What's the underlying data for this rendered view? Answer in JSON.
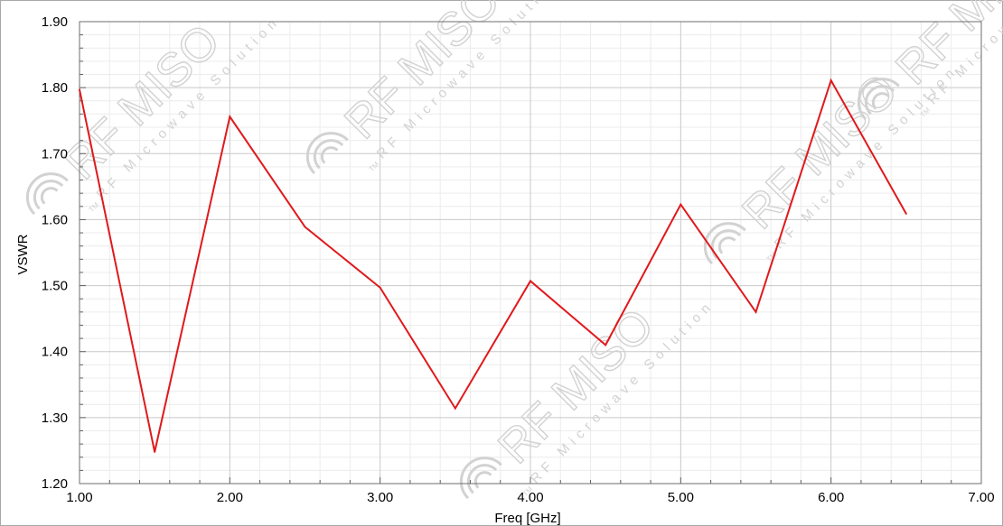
{
  "chart_data": {
    "type": "line",
    "title": "",
    "xlabel": "Freq [GHz]",
    "ylabel": "VSWR",
    "xlim": [
      1.0,
      7.0
    ],
    "ylim": [
      1.2,
      1.9
    ],
    "x_ticks": [
      "1.00",
      "2.00",
      "3.00",
      "4.00",
      "5.00",
      "6.00",
      "7.00"
    ],
    "y_ticks": [
      "1.20",
      "1.30",
      "1.40",
      "1.50",
      "1.60",
      "1.70",
      "1.80",
      "1.90"
    ],
    "x_tick_values": [
      1,
      2,
      3,
      4,
      5,
      6,
      7
    ],
    "y_tick_values": [
      1.2,
      1.3,
      1.4,
      1.5,
      1.6,
      1.7,
      1.8,
      1.9
    ],
    "grid": true,
    "legend": "none",
    "series": [
      {
        "color": "#e0191c",
        "x": [
          1.0,
          1.5,
          2.0,
          2.5,
          3.0,
          3.5,
          4.0,
          4.5,
          5.0,
          5.5,
          6.0,
          6.5
        ],
        "y": [
          1.797,
          1.248,
          1.756,
          1.589,
          1.497,
          1.314,
          1.507,
          1.41,
          1.623,
          1.46,
          1.811,
          1.609
        ]
      }
    ]
  },
  "watermark": {
    "brand": "RF MISO",
    "tagline": "RF Microwave Solution",
    "tm": "TM",
    "color": "#d2d2d2"
  }
}
